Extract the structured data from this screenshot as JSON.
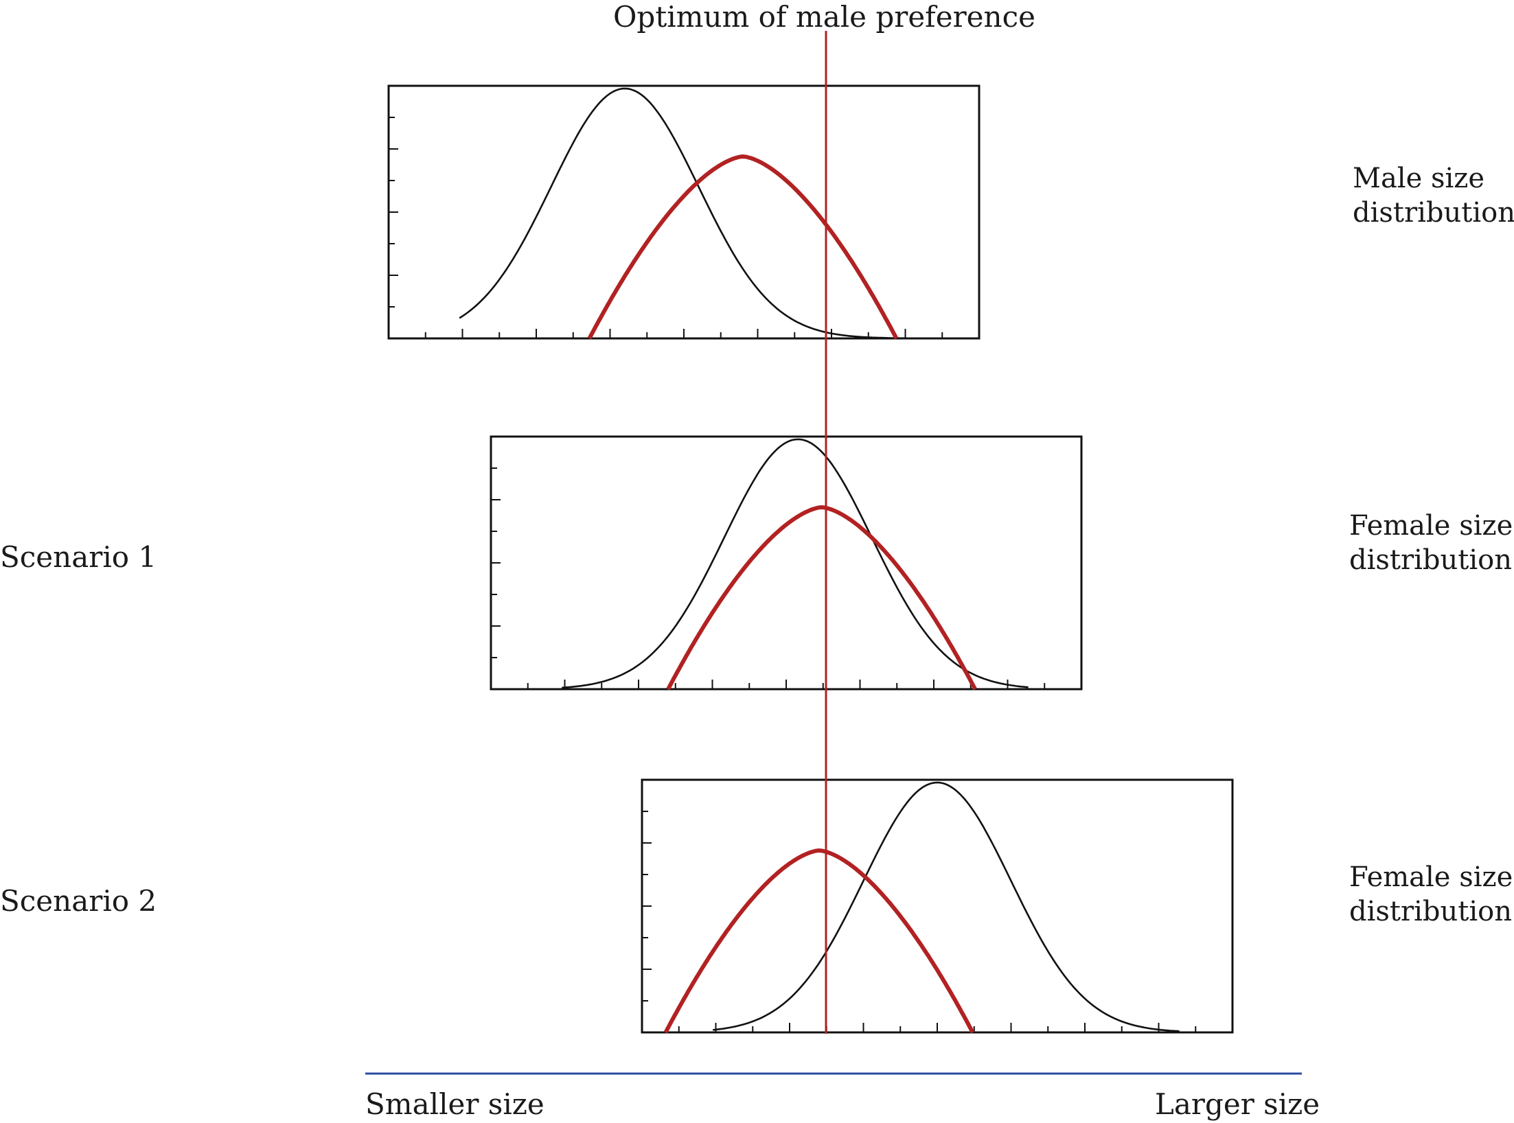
{
  "figure": {
    "optimum_label": "Optimum of male preference",
    "rows": [
      {
        "left_label": "",
        "right_label_line1": "Male size",
        "right_label_line2": "distribution",
        "panel": {
          "distribution_mean": 0.4,
          "preference_mean": 0.6
        }
      },
      {
        "left_label": "Scenario 1",
        "right_label_line1": "Female size",
        "right_label_line2": "distribution",
        "panel": {
          "distribution_mean": 0.52,
          "preference_mean": 0.56
        }
      },
      {
        "left_label": "Scenario 2",
        "right_label_line1": "Female size",
        "right_label_line2": "distribution",
        "panel": {
          "distribution_mean": 0.5,
          "preference_mean": 0.3
        }
      }
    ],
    "axis": {
      "left_label": "Smaller size",
      "right_label": "Larger size"
    },
    "colors": {
      "distribution": "#111111",
      "preference": "#b22222",
      "optimum_line": "#b22222",
      "axis_line": "#2b4aa0"
    }
  }
}
